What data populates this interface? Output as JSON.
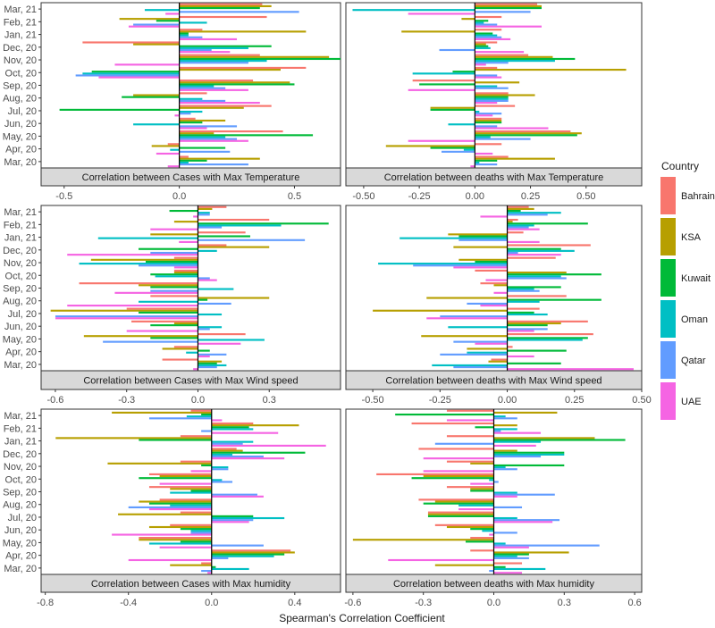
{
  "legend": {
    "title": "Country",
    "entries": [
      {
        "name": "Bahrain",
        "color": "#F8766D"
      },
      {
        "name": "KSA",
        "color": "#B79F00"
      },
      {
        "name": "Kuwait",
        "color": "#00BA38"
      },
      {
        "name": "Oman",
        "color": "#00BFC4"
      },
      {
        "name": "Qatar",
        "color": "#619CFF"
      },
      {
        "name": "UAE",
        "color": "#F564E3"
      }
    ]
  },
  "xlabel": "Spearman's Correlation Coefficient",
  "chart_data": {
    "type": "bar",
    "orientation": "horizontal",
    "grouping": "dodged",
    "categories": [
      "Mar, 20",
      "Apr, 20",
      "May, 20",
      "Jun, 20",
      "Jul, 20",
      "Aug, 20",
      "Sep, 20",
      "Oct, 20",
      "Nov, 20",
      "Dec, 20",
      "Jan, 21",
      "Feb, 21",
      "Mar, 21"
    ],
    "series_names": [
      "Bahrain",
      "KSA",
      "Kuwait",
      "Oman",
      "Qatar",
      "UAE"
    ],
    "legend_position": "right",
    "grid": false,
    "panels": [
      {
        "strip": "Correlation between Cases with Max Temperature",
        "xlim": [
          -0.6,
          0.7
        ],
        "xticks": [
          -0.5,
          0.0,
          0.5
        ],
        "xtick_labels": [
          "-0.5",
          "0.0",
          "0.5"
        ],
        "values": {
          "Bahrain": [
            0.04,
            -0.05,
            0.45,
            0.07,
            0.4,
            0.12,
            0.32,
            0.55,
            0.35,
            -0.42,
            0.1,
            0.38,
            0.36
          ],
          "KSA": [
            0.35,
            -0.12,
            0.15,
            0.2,
            0.28,
            -0.2,
            0.48,
            0.44,
            0.65,
            -0.2,
            0.55,
            -0.26,
            0.4
          ],
          "Kuwait": [
            0.12,
            0.2,
            0.58,
            0.1,
            -0.52,
            -0.25,
            0.5,
            -0.38,
            0.7,
            0.4,
            0.04,
            -0.1,
            0.35
          ],
          "Oman": [
            0.04,
            -0.04,
            0.2,
            -0.2,
            0.1,
            0.1,
            0.15,
            -0.42,
            0.38,
            0.3,
            0.04,
            0.12,
            -0.15
          ],
          "Qatar": [
            0.3,
            0.22,
            0.25,
            0.25,
            0.05,
            0.2,
            0.2,
            -0.45,
            0.3,
            0.14,
            0.1,
            -0.2,
            0.52
          ],
          "UAE": [
            -0.05,
            -0.1,
            0.3,
            0.12,
            -0.02,
            0.35,
            0.3,
            -0.35,
            -0.28,
            0.22,
            0.25,
            -0.22,
            -0.06
          ]
        }
      },
      {
        "strip": "Correlation between deaths with Max Temperature",
        "xlim": [
          -0.58,
          0.75
        ],
        "xticks": [
          -0.5,
          -0.25,
          0.0,
          0.25,
          0.5
        ],
        "xtick_labels": [
          "-0.50",
          "-0.25",
          "0.00",
          "0.25",
          "0.50"
        ],
        "values": {
          "Bahrain": [
            0.15,
            0.12,
            0.43,
            0.12,
            0.18,
            0.15,
            -0.28,
            0.1,
            0.24,
            0.1,
            0.12,
            0.12,
            0.28
          ],
          "KSA": [
            0.36,
            -0.4,
            0.48,
            0.12,
            -0.2,
            0.27,
            0.2,
            0.68,
            0.35,
            0.05,
            -0.33,
            -0.06,
            0.3
          ],
          "Kuwait": [
            0.1,
            -0.2,
            0.46,
            0.12,
            -0.2,
            0.15,
            -0.25,
            -0.1,
            0.45,
            0.06,
            0.08,
            0.06,
            0.3
          ],
          "Oman": [
            0.02,
            -0.05,
            0.07,
            -0.12,
            0.02,
            0.15,
            0.1,
            -0.28,
            0.36,
            0.07,
            0.1,
            0.04,
            -0.55
          ],
          "Qatar": [
            0.1,
            -0.15,
            0.25,
            0.1,
            0.12,
            0.15,
            0.15,
            0.1,
            0.15,
            -0.16,
            0.12,
            0.1,
            0.25
          ],
          "UAE": [
            -0.02,
            0.08,
            -0.3,
            0.33,
            0.08,
            0.1,
            -0.3,
            0.12,
            0.05,
            0.22,
            0.16,
            0.3,
            -0.3
          ]
        }
      },
      {
        "strip": "Correlation between Cases with Max Wind speed",
        "xlim": [
          -0.66,
          0.6
        ],
        "xticks": [
          -0.6,
          -0.3,
          0.0,
          0.3
        ],
        "xtick_labels": [
          "-0.6",
          "-0.3",
          "0.0",
          "0.3"
        ],
        "values": {
          "Bahrain": [
            -0.15,
            -0.1,
            0.2,
            -0.28,
            -0.3,
            -0.2,
            -0.5,
            -0.1,
            -0.1,
            0.12,
            0.2,
            0.3,
            0.12
          ],
          "KSA": [
            0.1,
            -0.15,
            -0.48,
            -0.1,
            -0.62,
            0.3,
            -0.25,
            -0.1,
            -0.45,
            0.3,
            -0.2,
            -0.1,
            0.06
          ],
          "Kuwait": [
            0.08,
            0.05,
            -0.2,
            -0.2,
            -0.25,
            0.04,
            -0.2,
            -0.2,
            -0.22,
            -0.25,
            0.22,
            0.55,
            -0.12
          ],
          "Oman": [
            0.12,
            -0.05,
            0.28,
            0.1,
            0.1,
            -0.25,
            0.15,
            -0.18,
            -0.5,
            0.08,
            -0.42,
            0.35,
            0.05
          ],
          "Qatar": [
            0.08,
            0.12,
            -0.4,
            0.05,
            -0.6,
            0.14,
            -0.2,
            0.05,
            -0.25,
            -0.2,
            0.45,
            0.1,
            0.05
          ],
          "UAE": [
            -0.02,
            0.05,
            0.18,
            -0.3,
            -0.6,
            -0.55,
            -0.35,
            0.08,
            -0.1,
            -0.55,
            -0.08,
            -0.2,
            -0.02
          ]
        }
      },
      {
        "strip": "Correlation between deaths with Max Wind speed",
        "xlim": [
          -0.6,
          0.5
        ],
        "xticks": [
          -0.5,
          -0.25,
          0.0,
          0.25,
          0.5
        ],
        "xtick_labels": [
          "-0.50",
          "-0.25",
          "0.00",
          "0.25",
          "0.50"
        ],
        "values": {
          "Bahrain": [
            -0.06,
            0.02,
            0.32,
            0.3,
            0.12,
            0.22,
            -0.1,
            -0.12,
            0.18,
            0.31,
            0.06,
            0.04,
            0.08
          ],
          "KSA": [
            -0.07,
            -0.15,
            -0.32,
            0.2,
            -0.5,
            -0.3,
            -0.05,
            0.22,
            -0.18,
            -0.2,
            -0.22,
            0.02,
            0.1
          ],
          "Kuwait": [
            0.2,
            0.22,
            0.3,
            0.15,
            0.1,
            0.35,
            0.2,
            0.35,
            -0.12,
            0.2,
            -0.18,
            0.3,
            0.05
          ],
          "Oman": [
            -0.28,
            -0.15,
            0.28,
            -0.22,
            0.15,
            0.12,
            0.1,
            0.2,
            -0.48,
            0.25,
            -0.4,
            0.1,
            0.2
          ],
          "Qatar": [
            -0.2,
            -0.25,
            -0.2,
            0.15,
            -0.25,
            -0.15,
            0.12,
            0.22,
            -0.35,
            0.04,
            -0.18,
            0.08,
            0.15
          ],
          "UAE": [
            0.47,
            0.1,
            -0.12,
            0.1,
            -0.3,
            -0.1,
            -0.05,
            -0.08,
            -0.2,
            0.2,
            0.12,
            0.12,
            -0.1
          ]
        }
      },
      {
        "strip": "Correlation between Cases with Max humidity",
        "xlim": [
          -0.82,
          0.62
        ],
        "xticks": [
          -0.8,
          -0.4,
          0.0,
          0.4
        ],
        "xtick_labels": [
          "-0.8",
          "-0.4",
          "0.0",
          "0.4"
        ],
        "values": {
          "Bahrain": [
            -0.05,
            0.38,
            -0.35,
            -0.2,
            -0.15,
            -0.25,
            -0.3,
            -0.3,
            -0.15,
            0.12,
            -0.15,
            0.2,
            -0.1
          ],
          "KSA": [
            -0.2,
            0.4,
            -0.35,
            -0.3,
            -0.45,
            -0.35,
            -0.2,
            -0.25,
            -0.5,
            0.15,
            -0.75,
            0.42,
            -0.48
          ],
          "Kuwait": [
            0.02,
            0.35,
            -0.15,
            -0.15,
            0.2,
            -0.3,
            -0.1,
            -0.35,
            -0.05,
            0.45,
            -0.35,
            0.18,
            -0.05
          ],
          "Oman": [
            0.18,
            0.3,
            -0.3,
            -0.1,
            0.35,
            -0.2,
            -0.2,
            0.05,
            0.08,
            0.1,
            0.2,
            0.2,
            -0.12
          ],
          "Qatar": [
            -0.05,
            0.08,
            0.25,
            -0.1,
            0.2,
            -0.4,
            0.22,
            0.1,
            0.08,
            0.25,
            0.15,
            -0.05,
            -0.3
          ],
          "UAE": [
            -0.02,
            -0.4,
            -0.25,
            -0.48,
            0.18,
            -0.3,
            0.25,
            -0.25,
            -0.1,
            0.35,
            0.55,
            0.32,
            0.05
          ]
        }
      },
      {
        "strip": "Correlation between deaths with Max humidity",
        "xlim": [
          -0.63,
          0.63
        ],
        "xticks": [
          -0.6,
          -0.3,
          0.0,
          0.3,
          0.6
        ],
        "xtick_labels": [
          "-0.6",
          "-0.3",
          "0.0",
          "0.3",
          "0.6"
        ],
        "values": {
          "Bahrain": [
            0.12,
            -0.1,
            -0.1,
            -0.25,
            -0.28,
            -0.32,
            -0.2,
            -0.5,
            -0.2,
            -0.32,
            -0.2,
            -0.35,
            -0.2
          ],
          "KSA": [
            -0.25,
            0.32,
            -0.6,
            -0.2,
            -0.28,
            -0.25,
            -0.1,
            -0.3,
            -0.1,
            0.1,
            0.43,
            0.1,
            0.27
          ],
          "Kuwait": [
            0.05,
            0.15,
            -0.12,
            -0.1,
            -0.28,
            -0.3,
            -0.1,
            -0.35,
            0.3,
            0.3,
            0.56,
            -0.08,
            -0.42
          ],
          "Oman": [
            0.22,
            0.1,
            0.05,
            -0.05,
            0.1,
            -0.15,
            0.1,
            -0.02,
            0.05,
            0.3,
            0.2,
            0.1,
            0.05
          ],
          "Qatar": [
            -0.02,
            0.15,
            0.45,
            0.1,
            0.28,
            0.12,
            0.26,
            0.02,
            0.1,
            0.2,
            -0.25,
            0.03,
            0.1
          ],
          "UAE": [
            0.12,
            -0.45,
            0.15,
            -0.02,
            0.25,
            -0.15,
            0.1,
            -0.1,
            -0.3,
            -0.3,
            0.18,
            0.2,
            -0.2
          ]
        }
      }
    ]
  }
}
